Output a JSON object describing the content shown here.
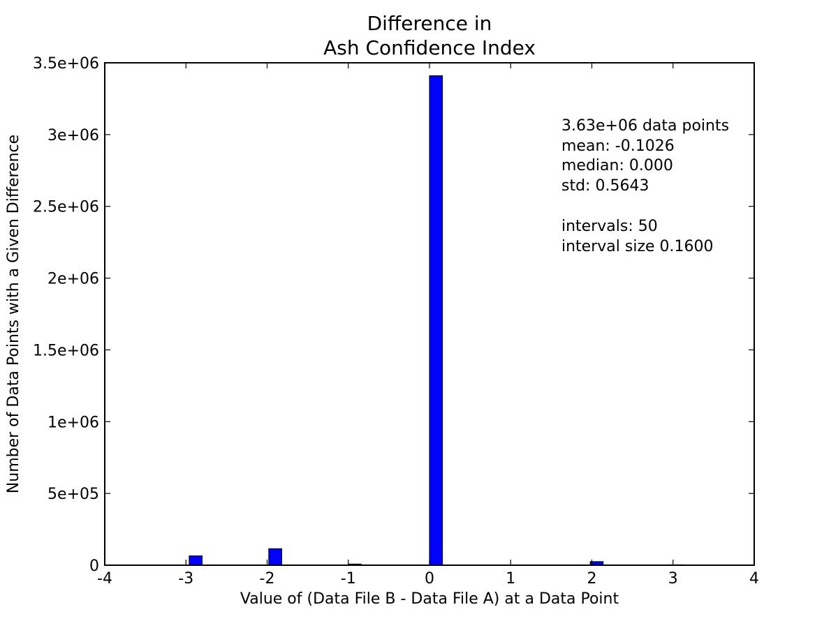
{
  "chart_data": {
    "type": "bar",
    "title_lines": [
      "Difference in",
      "Ash Confidence Index"
    ],
    "xlabel": "Value of (Data File B - Data File A) at a Data Point",
    "ylabel": "Number of Data Points with a Given Difference",
    "xlim": [
      -4,
      4
    ],
    "ylim": [
      0,
      3500000
    ],
    "xticks": [
      -4,
      -3,
      -2,
      -1,
      0,
      1,
      2,
      3,
      4
    ],
    "xtick_labels": [
      "-4",
      "-3",
      "-2",
      "-1",
      "0",
      "1",
      "2",
      "3",
      "4"
    ],
    "yticks": [
      0,
      500000,
      1000000,
      1500000,
      2000000,
      2500000,
      3000000,
      3500000
    ],
    "ytick_labels": [
      "0",
      "5e+05",
      "1e+06",
      "1.5e+06",
      "2e+06",
      "2.5e+06",
      "3e+06",
      "3.5e+06"
    ],
    "bar_width": 0.16,
    "bars": [
      {
        "x": -2.96,
        "value": 65000
      },
      {
        "x": -1.98,
        "value": 115000
      },
      {
        "x": -1.0,
        "value": 8000
      },
      {
        "x": 0.0,
        "value": 3410000
      },
      {
        "x": 1.98,
        "value": 25000
      },
      {
        "x": 2.96,
        "value": 3000
      }
    ],
    "bar_color": "#0000ff",
    "bar_edge_color": "#000000",
    "grid": false,
    "stats_lines": [
      "3.63e+06 data points",
      "mean: -0.1026",
      "median: 0.000",
      "std: 0.5643",
      "",
      "intervals: 50",
      "interval size 0.1600"
    ]
  }
}
